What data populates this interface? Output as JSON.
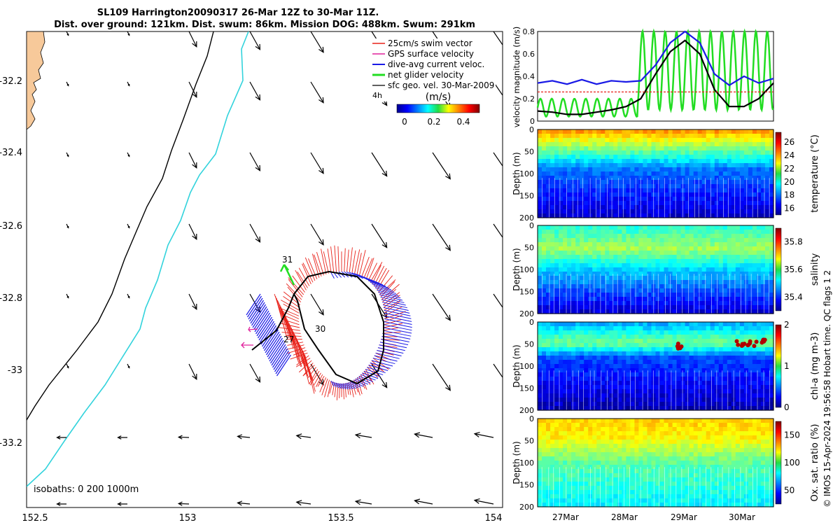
{
  "title": {
    "line1": "SL109 Harrington20090317 26-Mar 12Z to 30-Mar 11Z.",
    "line2": "Dist. over ground: 121km. Dist. swum: 86km. Mission DOG: 488km. Swum: 291km"
  },
  "colors": {
    "swim": "#e8221a",
    "gps": "#e0209c",
    "dive_avg": "#1a1ae6",
    "net": "#22dd22",
    "geo": "#000000",
    "coast": "#f7c99a",
    "iso200": "#32d3dc",
    "iso1000": "#000000"
  },
  "map": {
    "legend": [
      {
        "label": "25cm/s swim vector",
        "color": "#e8221a"
      },
      {
        "label": "GPS surface velocity",
        "color": "#e0209c"
      },
      {
        "label": "dive-avg current veloc.",
        "color": "#1a1ae6"
      },
      {
        "label": "net glider velocity",
        "color": "#22dd22"
      },
      {
        "label": "sfc geo. vel. 30-Mar-2009",
        "color": "#000000"
      }
    ],
    "colorbar": {
      "unit": "(m/s)",
      "ticks": [
        "0",
        "0.2",
        "0.4"
      ],
      "range": [
        0,
        0.5
      ]
    },
    "lat_ticks": [
      "-32.2",
      "-32.4",
      "-32.6",
      "-32.8",
      "-33",
      "-33.2"
    ],
    "lon_ticks": [
      "152.5",
      "153",
      "153.5",
      "154"
    ],
    "isobaths_note": "isobaths: 0   200  1000m",
    "day_labels": [
      {
        "text": "31"
      },
      {
        "text": "30"
      },
      {
        "text": "27"
      },
      {
        "text": "4h"
      }
    ]
  },
  "chart_data": [
    {
      "type": "line",
      "ylabel": "velocity magnitude (m/s)",
      "ylim": [
        0,
        0.8
      ],
      "yticks": [
        "0",
        "0.2",
        "0.4",
        "0.6",
        "0.8"
      ],
      "x": [
        26.5,
        26.75,
        27,
        27.25,
        27.5,
        27.75,
        28,
        28.25,
        28.5,
        28.75,
        29,
        29.25,
        29.5,
        29.75,
        30,
        30.25,
        30.5
      ],
      "series": [
        {
          "name": "dive-avg current veloc.",
          "values": [
            0.34,
            0.36,
            0.33,
            0.37,
            0.33,
            0.36,
            0.35,
            0.36,
            0.5,
            0.7,
            0.8,
            0.7,
            0.42,
            0.32,
            0.4,
            0.34,
            0.38
          ]
        },
        {
          "name": "net glider velocity",
          "values": [
            0.09,
            0.08,
            0.06,
            0.06,
            0.08,
            0.1,
            0.13,
            0.2,
            0.42,
            0.62,
            0.72,
            0.6,
            0.28,
            0.13,
            0.13,
            0.2,
            0.34
          ]
        },
        {
          "name": "25cm/s swim vector",
          "values": [
            0.26,
            0.26,
            0.26,
            0.26,
            0.26,
            0.26,
            0.26,
            0.26,
            0.26,
            0.26,
            0.26,
            0.26,
            0.26,
            0.26,
            0.26,
            0.26,
            0.26
          ]
        }
      ]
    },
    {
      "type": "heatmap",
      "variable": "temperature (°C)",
      "ylabel": "Depth (m)",
      "depth_ticks": [
        "0",
        "50",
        "100",
        "150",
        "200"
      ],
      "colorbar_ticks": [
        "16",
        "18",
        "20",
        "22",
        "24",
        "26"
      ],
      "colorbar_range": [
        15,
        27.5
      ],
      "layers": [
        {
          "depth": 0,
          "value": 24
        },
        {
          "depth": 30,
          "value": 22
        },
        {
          "depth": 60,
          "value": 20
        },
        {
          "depth": 90,
          "value": 18
        },
        {
          "depth": 200,
          "value": 16
        }
      ]
    },
    {
      "type": "heatmap",
      "variable": "salinity",
      "ylabel": "Depth (m)",
      "depth_ticks": [
        "0",
        "50",
        "100",
        "150",
        "200"
      ],
      "colorbar_ticks": [
        "35.4",
        "35.6",
        "35.8"
      ],
      "colorbar_range": [
        35.3,
        35.9
      ],
      "layers": [
        {
          "depth": 0,
          "value": 35.55
        },
        {
          "depth": 50,
          "value": 35.62
        },
        {
          "depth": 100,
          "value": 35.5
        },
        {
          "depth": 200,
          "value": 35.35
        }
      ]
    },
    {
      "type": "heatmap",
      "variable": "chl-a (mg m-3)",
      "ylabel": "Depth (m)",
      "depth_ticks": [
        "0",
        "50",
        "100",
        "150",
        "200"
      ],
      "colorbar_ticks": [
        "0",
        "1",
        "2"
      ],
      "colorbar_range": [
        0,
        2
      ],
      "layers": [
        {
          "depth": 0,
          "value": 0.6
        },
        {
          "depth": 45,
          "value": 1.0
        },
        {
          "depth": 80,
          "value": 0.4
        },
        {
          "depth": 200,
          "value": 0.1
        }
      ]
    },
    {
      "type": "heatmap",
      "variable": "Ox. sat. ratio (%)",
      "ylabel": "Depth (m)",
      "depth_ticks": [
        "0",
        "50",
        "100",
        "150",
        "200"
      ],
      "colorbar_ticks": [
        "50",
        "100",
        "150"
      ],
      "colorbar_range": [
        25,
        175
      ],
      "layers": [
        {
          "depth": 0,
          "value": 125
        },
        {
          "depth": 40,
          "value": 120
        },
        {
          "depth": 100,
          "value": 95
        },
        {
          "depth": 200,
          "value": 80
        }
      ]
    }
  ],
  "time_axis": {
    "labels": [
      "27Mar",
      "28Mar",
      "29Mar",
      "30Mar"
    ]
  },
  "footer": "© IMOS 15-Apr-2024 19:56:58 Hobart time. QC flags 1  2"
}
